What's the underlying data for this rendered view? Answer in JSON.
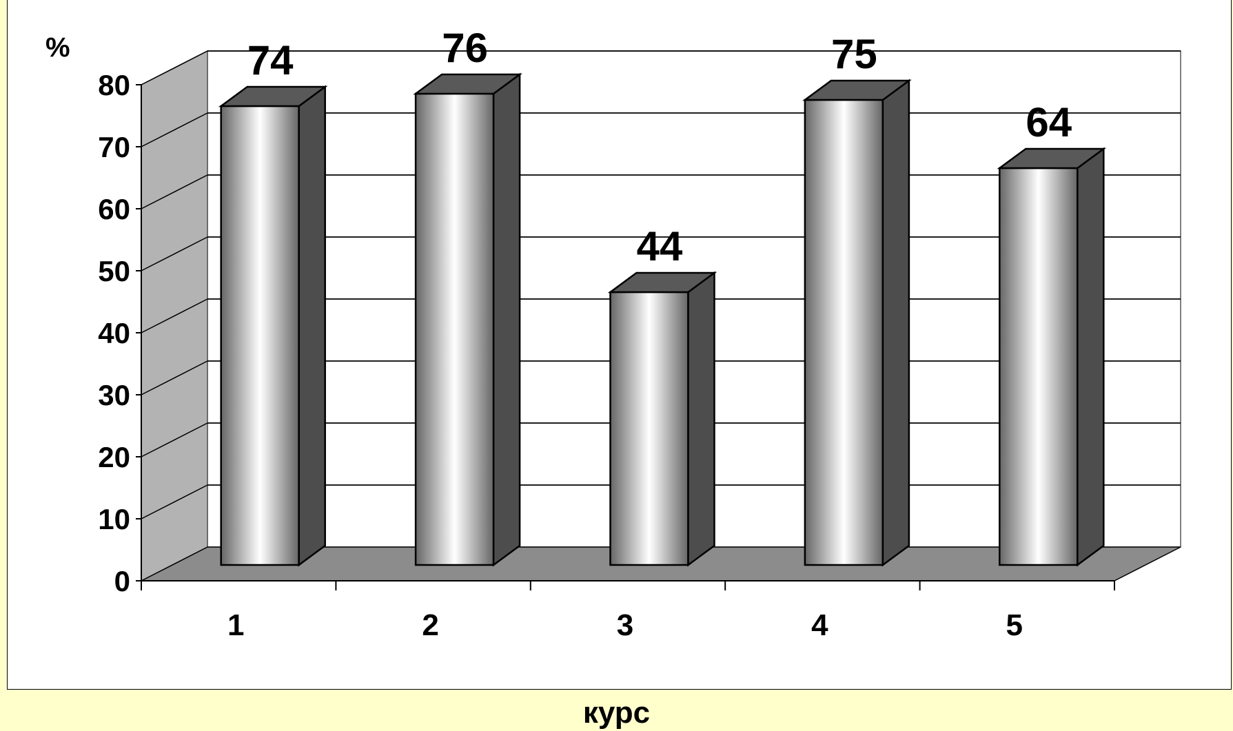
{
  "chart_data": {
    "type": "bar",
    "categories": [
      "1",
      "2",
      "3",
      "4",
      "5"
    ],
    "values": [
      74,
      76,
      44,
      75,
      64
    ],
    "data_labels": [
      "74",
      "76",
      "44",
      "75",
      "64"
    ],
    "title": "",
    "xlabel": "курс",
    "ylabel": "%",
    "ylim": [
      0,
      80
    ],
    "yticks": [
      0,
      10,
      20,
      30,
      40,
      50,
      60,
      70,
      80
    ],
    "ytick_labels": [
      "0",
      "10",
      "20",
      "30",
      "40",
      "50",
      "60",
      "70",
      "80"
    ],
    "grid": true,
    "legend": "none",
    "style": "3d-column"
  },
  "colors": {
    "page_background": "#ffffcc",
    "plot_background": "#ffffff",
    "back_wall": "#ffffff",
    "side_wall": "#b3b3b3",
    "floor": "#8c8c8c",
    "bar_side": "#4d4d4d",
    "bar_top": "#595959",
    "bar_front_edge": "#666666",
    "bar_front_center": "#ffffff",
    "outline": "#000000"
  }
}
